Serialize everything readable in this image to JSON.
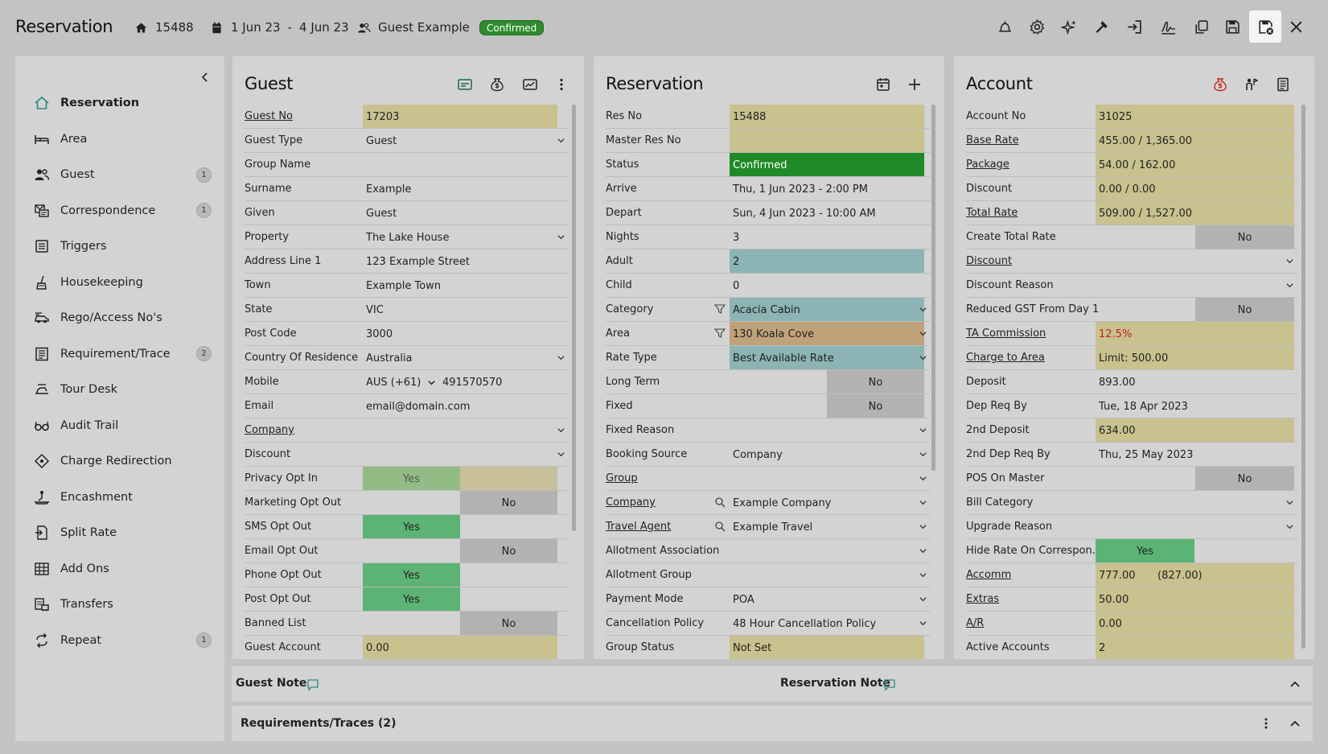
{
  "header": {
    "title": "Reservation",
    "res_no": "15488",
    "date_from": "1 Jun 23",
    "date_sep": "-",
    "date_to": "4 Jun 23",
    "guest_name": "Guest Example",
    "status_badge": "Confirmed",
    "toolbar_icons": [
      "bell-icon",
      "gear-icon",
      "sparkle-icon",
      "hammer-icon",
      "check-in-icon",
      "signature-icon",
      "copy-icon",
      "save-icon",
      "save-close-icon",
      "close-icon"
    ]
  },
  "sidebar": {
    "items": [
      {
        "label": "Reservation",
        "icon": "home-icon",
        "count": ""
      },
      {
        "label": "Area",
        "icon": "bed-icon",
        "count": ""
      },
      {
        "label": "Guest",
        "icon": "people-icon",
        "count": "1"
      },
      {
        "label": "Correspondence",
        "icon": "correspondence-icon",
        "count": "1"
      },
      {
        "label": "Triggers",
        "icon": "triggers-icon",
        "count": ""
      },
      {
        "label": "Housekeeping",
        "icon": "housekeeping-icon",
        "count": ""
      },
      {
        "label": "Rego/Access No's",
        "icon": "car-icon",
        "count": ""
      },
      {
        "label": "Requirement/Trace",
        "icon": "list-icon",
        "count": "2"
      },
      {
        "label": "Tour Desk",
        "icon": "tour-icon",
        "count": ""
      },
      {
        "label": "Audit Trail",
        "icon": "glasses-icon",
        "count": ""
      },
      {
        "label": "Charge Redirection",
        "icon": "redirect-icon",
        "count": ""
      },
      {
        "label": "Encashment",
        "icon": "encashment-icon",
        "count": ""
      },
      {
        "label": "Split Rate",
        "icon": "split-icon",
        "count": ""
      },
      {
        "label": "Add Ons",
        "icon": "addons-icon",
        "count": ""
      },
      {
        "label": "Transfers",
        "icon": "transfers-icon",
        "count": ""
      },
      {
        "label": "Repeat",
        "icon": "repeat-icon",
        "count": "1"
      }
    ]
  },
  "guest": {
    "title": "Guest",
    "rows": [
      {
        "label": "Guest No",
        "value": "17203",
        "link": true,
        "style": "khaki"
      },
      {
        "label": "Guest Type",
        "value": "Guest",
        "dropdown": true
      },
      {
        "label": "Group Name",
        "value": ""
      },
      {
        "label": "Surname",
        "value": "Example"
      },
      {
        "label": "Given",
        "value": "Guest"
      },
      {
        "label": "Property",
        "value": "The Lake House",
        "dropdown": true
      },
      {
        "label": "Address Line 1",
        "value": "123 Example Street"
      },
      {
        "label": "Town",
        "value": "Example Town"
      },
      {
        "label": "State",
        "value": "VIC"
      },
      {
        "label": "Post Code",
        "value": "3000"
      },
      {
        "label": "Country Of Residence",
        "value": "Australia",
        "dropdown": true
      },
      {
        "label": "Mobile",
        "value": "AUS (+61)",
        "value2": "491570570"
      },
      {
        "label": "Email",
        "value": "email@domain.com"
      },
      {
        "label": "Company",
        "value": "",
        "link": true,
        "dropdown": true
      },
      {
        "label": "Discount",
        "value": "",
        "dropdown": true
      },
      {
        "label": "Privacy Opt In",
        "toggle": "Yes",
        "muted": true
      },
      {
        "label": "Marketing Opt Out",
        "toggle": "No"
      },
      {
        "label": "SMS Opt Out",
        "toggle": "Yes"
      },
      {
        "label": "Email Opt Out",
        "toggle": "No"
      },
      {
        "label": "Phone Opt Out",
        "toggle": "Yes"
      },
      {
        "label": "Post Opt Out",
        "toggle": "Yes"
      },
      {
        "label": "Banned List",
        "toggle": "No"
      },
      {
        "label": "Guest Account",
        "value": "0.00",
        "style": "khaki"
      }
    ]
  },
  "reservation": {
    "title": "Reservation",
    "rows": [
      {
        "label": "Res No",
        "value": "15488",
        "style": "khaki"
      },
      {
        "label": "Master Res No",
        "value": "",
        "style": "khaki"
      },
      {
        "label": "Status",
        "value": "Confirmed",
        "style": "green"
      },
      {
        "label": "Arrive",
        "value": "Thu, 1 Jun 2023 - 2:00 PM"
      },
      {
        "label": "Depart",
        "value": "Sun, 4 Jun 2023 - 10:00 AM"
      },
      {
        "label": "Nights",
        "value": "3"
      },
      {
        "label": "Adult",
        "value": "2",
        "style": "teal"
      },
      {
        "label": "Child",
        "value": "0"
      },
      {
        "label": "Category",
        "value": "Acacia Cabin",
        "style": "teal",
        "dropdown": true,
        "filter": true
      },
      {
        "label": "Area",
        "value": "130 Koala Cove",
        "style": "tan",
        "dropdown": true,
        "filter": true
      },
      {
        "label": "Rate Type",
        "value": "Best Available Rate",
        "style": "teal",
        "dropdown": true
      },
      {
        "label": "Long Term",
        "toggle": "No"
      },
      {
        "label": "Fixed",
        "toggle": "No"
      },
      {
        "label": "Fixed Reason",
        "value": "",
        "dropdown": true
      },
      {
        "label": "Booking Source",
        "value": "Company",
        "dropdown": true
      },
      {
        "label": "Group",
        "value": "",
        "link": true,
        "dropdown": true
      },
      {
        "label": "Company",
        "value": "Example Company",
        "link": true,
        "dropdown": true,
        "search": true
      },
      {
        "label": "Travel Agent",
        "value": "Example Travel",
        "link": true,
        "dropdown": true,
        "search": true
      },
      {
        "label": "Allotment Association",
        "value": "",
        "dropdown": true
      },
      {
        "label": "Allotment Group",
        "value": "",
        "dropdown": true
      },
      {
        "label": "Payment Mode",
        "value": "POA",
        "dropdown": true
      },
      {
        "label": "Cancellation Policy",
        "value": "48 Hour Cancellation Policy",
        "dropdown": true
      },
      {
        "label": "Group Status",
        "value": "Not Set",
        "style": "khaki"
      }
    ]
  },
  "account": {
    "title": "Account",
    "rows": [
      {
        "label": "Account No",
        "value": "31025",
        "style": "khaki"
      },
      {
        "label": "Base Rate",
        "value": "455.00 / 1,365.00",
        "link": true,
        "style": "khaki"
      },
      {
        "label": "Package",
        "value": "54.00 / 162.00",
        "link": true,
        "style": "khaki"
      },
      {
        "label": "Discount",
        "value": "0.00 / 0.00",
        "style": "khaki"
      },
      {
        "label": "Total Rate",
        "value": "509.00 / 1,527.00",
        "link": true,
        "style": "khaki"
      },
      {
        "label": "Create Total Rate",
        "toggle": "No"
      },
      {
        "label": "Discount",
        "value": "",
        "link": true,
        "dropdown": true
      },
      {
        "label": "Discount Reason",
        "value": "",
        "dropdown": true
      },
      {
        "label": "Reduced GST From Day 1",
        "toggle": "No"
      },
      {
        "label": "TA Commission",
        "value": "12.5%",
        "link": true,
        "style": "khaki",
        "red": true
      },
      {
        "label": "Charge to Area",
        "value": "Limit: 500.00",
        "link": true,
        "style": "khaki"
      },
      {
        "label": "Deposit",
        "value": "893.00"
      },
      {
        "label": "Dep Req By",
        "value": "Tue, 18 Apr 2023"
      },
      {
        "label": "2nd Deposit",
        "value": "634.00",
        "style": "khaki"
      },
      {
        "label": "2nd Dep Req By",
        "value": "Thu, 25 May 2023"
      },
      {
        "label": "POS On Master",
        "toggle": "No"
      },
      {
        "label": "Bill Category",
        "value": "",
        "dropdown": true
      },
      {
        "label": "Upgrade Reason",
        "value": "",
        "dropdown": true
      },
      {
        "label": "Hide Rate On Correspon...",
        "toggle": "Yes"
      },
      {
        "label": "Accomm",
        "value": "777.00",
        "value2": "(827.00)",
        "link": true,
        "style": "khaki"
      },
      {
        "label": "Extras",
        "value": "50.00",
        "link": true,
        "style": "khaki"
      },
      {
        "label": "A/R",
        "value": "0.00",
        "link": true,
        "style": "khaki"
      },
      {
        "label": "Active Accounts",
        "value": "2",
        "style": "khaki"
      }
    ]
  },
  "notes": {
    "guest_note": "Guest Note",
    "reservation_note": "Reservation Note"
  },
  "requirements": {
    "label": "Requirements/Traces (2)"
  },
  "colors": {
    "khaki": "#c9c18e",
    "status_green": "#1f8a27",
    "teal": "#8db4b4",
    "tan": "#bfa27a",
    "yes_green": "#5bb474",
    "toggle_gray": "#b2b2b2",
    "commission_red": "#c0251d"
  }
}
